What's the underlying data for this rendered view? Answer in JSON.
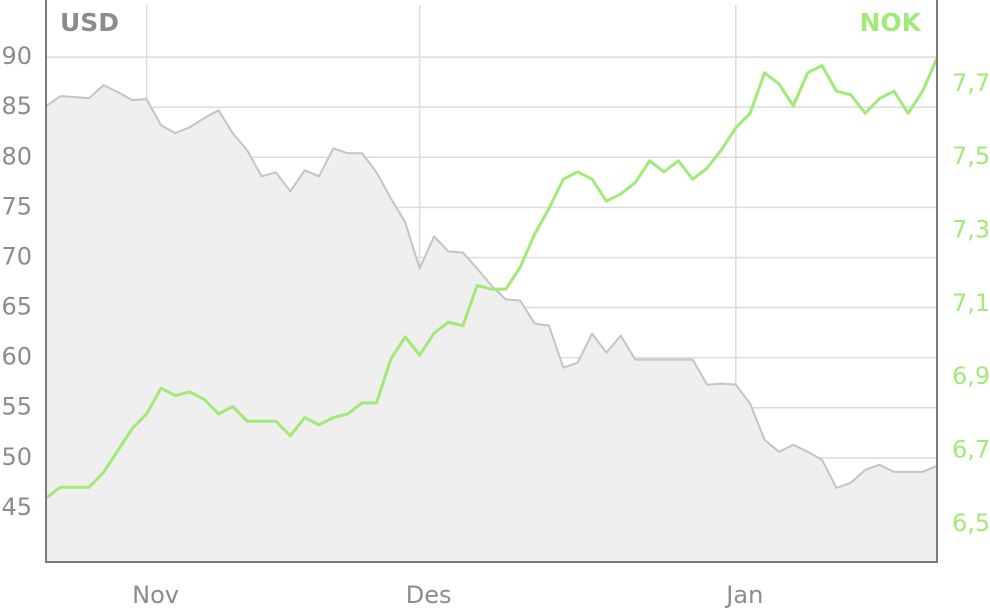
{
  "chart_data": {
    "type": "line",
    "categories": [
      null,
      null,
      null,
      null,
      null,
      null,
      null,
      "Nov",
      null,
      null,
      null,
      null,
      null,
      null,
      null,
      null,
      null,
      null,
      null,
      null,
      null,
      null,
      null,
      null,
      null,
      null,
      "Des",
      null,
      null,
      null,
      null,
      null,
      null,
      null,
      null,
      null,
      null,
      null,
      null,
      null,
      null,
      null,
      null,
      null,
      null,
      null,
      null,
      null,
      "Jan",
      null,
      null,
      null,
      null,
      null,
      null,
      null,
      null,
      null,
      null,
      null,
      null,
      null,
      null
    ],
    "series": [
      {
        "name": "USD",
        "color": "#c4c4c4",
        "fill": "#efefef",
        "axis": "y",
        "values": [
          85.1,
          86.1,
          86.0,
          85.9,
          87.2,
          86.5,
          85.7,
          85.8,
          83.2,
          82.4,
          83.0,
          83.9,
          84.7,
          82.4,
          80.7,
          78.1,
          78.5,
          76.6,
          78.7,
          78.1,
          80.9,
          80.4,
          80.4,
          78.5,
          75.9,
          73.5,
          68.9,
          72.1,
          70.6,
          70.5,
          68.9,
          67.2,
          65.8,
          65.7,
          63.4,
          63.2,
          59.0,
          59.5,
          62.4,
          60.5,
          62.2,
          59.8,
          59.8,
          59.8,
          59.8,
          59.8,
          57.3,
          57.4,
          57.3,
          55.4,
          51.8,
          50.6,
          51.3,
          50.6,
          49.8,
          47.0,
          47.5,
          48.8,
          49.3,
          48.6,
          48.6,
          48.6,
          49.2
        ]
      },
      {
        "name": "NOK",
        "color": "#a2ea78",
        "axis": "y2",
        "values": [
          6.57,
          6.6,
          6.6,
          6.6,
          6.64,
          6.7,
          6.76,
          6.8,
          6.87,
          6.85,
          6.86,
          6.84,
          6.8,
          6.82,
          6.78,
          6.78,
          6.78,
          6.74,
          6.79,
          6.77,
          6.79,
          6.8,
          6.83,
          6.83,
          6.95,
          7.01,
          6.96,
          7.02,
          7.05,
          7.04,
          7.15,
          7.14,
          7.14,
          7.2,
          7.29,
          7.36,
          7.44,
          7.46,
          7.44,
          7.38,
          7.4,
          7.43,
          7.49,
          7.46,
          7.49,
          7.44,
          7.47,
          7.52,
          7.58,
          7.62,
          7.73,
          7.7,
          7.64,
          7.73,
          7.75,
          7.68,
          7.67,
          7.62,
          7.66,
          7.68,
          7.62,
          7.68,
          7.77
        ]
      }
    ],
    "ylim": [
      39.6,
      95.2
    ],
    "yticks": [
      45,
      50,
      55,
      60,
      65,
      70,
      75,
      80,
      85,
      90
    ],
    "y2lim": [
      6.396,
      7.915
    ],
    "y2ticks": [
      {
        "value": 6.5,
        "label": "6,5"
      },
      {
        "value": 6.7,
        "label": "6,7"
      },
      {
        "value": 6.9,
        "label": "6,9"
      },
      {
        "value": 7.1,
        "label": "7,1"
      },
      {
        "value": 7.3,
        "label": "7,3"
      },
      {
        "value": 7.5,
        "label": "7,5"
      },
      {
        "value": 7.7,
        "label": "7,7"
      }
    ],
    "ytick_color": "#8c8c8c",
    "grid": true
  }
}
